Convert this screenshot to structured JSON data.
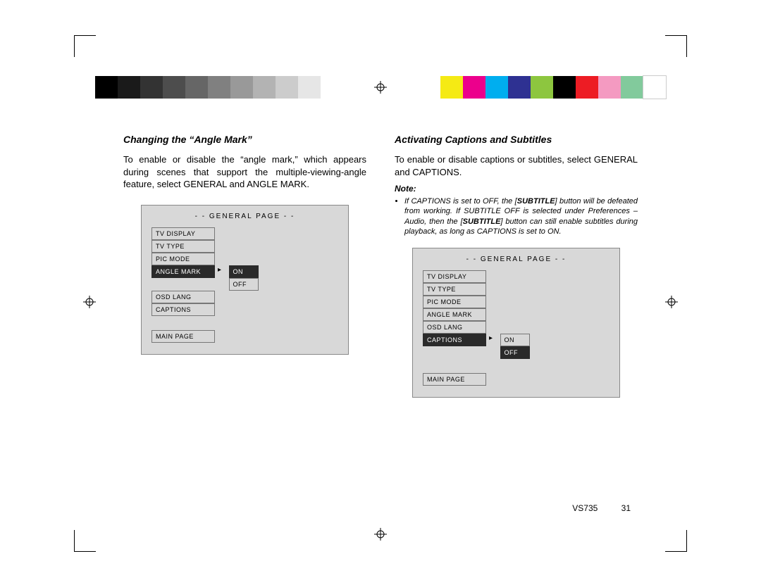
{
  "colorbar_left": [
    "#000000",
    "#1a1a1a",
    "#333333",
    "#4d4d4d",
    "#666666",
    "#808080",
    "#999999",
    "#b3b3b3",
    "#cccccc",
    "#e6e6e6"
  ],
  "colorbar_right": [
    "#f5ea14",
    "#ec008c",
    "#00aeef",
    "#2e3192",
    "#8dc63f",
    "#000000",
    "#ed1c24",
    "#f49ac1",
    "#82ca9c",
    "#ffffff"
  ],
  "left": {
    "heading": "Changing the “Angle Mark”",
    "body": "To enable or disable the “angle mark,” which appears during scenes that support the multiple-viewing-angle feature, select GENERAL and ANGLE MARK.",
    "osd": {
      "title": "- -   GENERAL  PAGE   - -",
      "items": [
        "TV DISPLAY",
        "TV TYPE",
        "PIC MODE",
        "ANGLE MARK",
        "OSD LANG",
        "CAPTIONS"
      ],
      "selected_index": 3,
      "options": [
        "ON",
        "OFF"
      ],
      "option_selected_index": 0,
      "main": "MAIN PAGE"
    }
  },
  "right": {
    "heading": "Activating Captions and Subtitles",
    "body": "To enable or disable captions or subtitles, select GENERAL and CAPTIONS.",
    "note_head": "Note:",
    "note_pre": "If CAPTIONS is set to OFF, the [",
    "note_b1": "SUBTITLE",
    "note_mid1": "] button will be defeated from working. If SUBTITLE OFF is selected under Preferences – Audio, then the [",
    "note_b2": "SUBTITLE",
    "note_post": "] button can still enable subtitles during playback, as long as CAPTIONS is set to ON.",
    "osd": {
      "title": "- -   GENERAL  PAGE   - -",
      "items": [
        "TV DISPLAY",
        "TV TYPE",
        "PIC MODE",
        "ANGLE MARK",
        "OSD LANG",
        "CAPTIONS"
      ],
      "selected_index": 5,
      "options": [
        "ON",
        "OFF"
      ],
      "option_selected_index": 1,
      "main": "MAIN PAGE"
    }
  },
  "footer": {
    "model": "VS735",
    "page": "31"
  }
}
